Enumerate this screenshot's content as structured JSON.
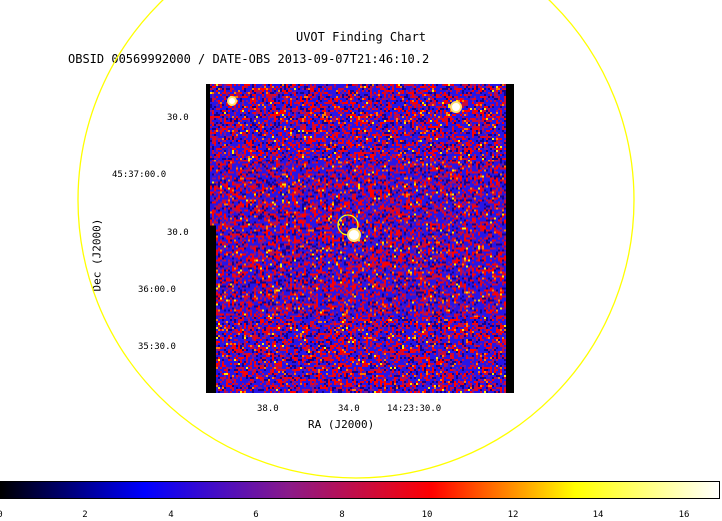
{
  "header": {
    "title": "UVOT Finding Chart",
    "subtitle": "OBSID 00569992000 / DATE-OBS 2013-09-07T21:46:10.2"
  },
  "chart_data": {
    "type": "heatmap",
    "title": "UVOT Finding Chart",
    "subtitle": "OBSID 00569992000 / DATE-OBS 2013-09-07T21:46:10.2",
    "xlabel": "RA (J2000)",
    "ylabel": "Dec (J2000)",
    "x_ticks": [
      "38.0",
      "34.0",
      "14:23:30.0"
    ],
    "y_ticks": [
      "30.0",
      "45:37:00.0",
      "30.0",
      "36:00.0",
      "35:30.0"
    ],
    "colorbar": {
      "ticks": [
        "0",
        "2",
        "4",
        "6",
        "8",
        "10",
        "12",
        "14",
        "16"
      ],
      "range": [
        0,
        17
      ],
      "colormap": [
        "#000000",
        "#0000ff",
        "#8a1a8a",
        "#ff0000",
        "#ffff00",
        "#ffffff"
      ]
    },
    "sources": [
      {
        "ra": "14:23:33.9",
        "dec": "45:36:29",
        "type": "target"
      },
      {
        "ra": "14:23:38.6",
        "dec": "45:37:20",
        "type": "star"
      },
      {
        "ra": "14:23:28.8",
        "dec": "45:37:17",
        "type": "star"
      }
    ],
    "overlay_color": "#ffff00"
  }
}
